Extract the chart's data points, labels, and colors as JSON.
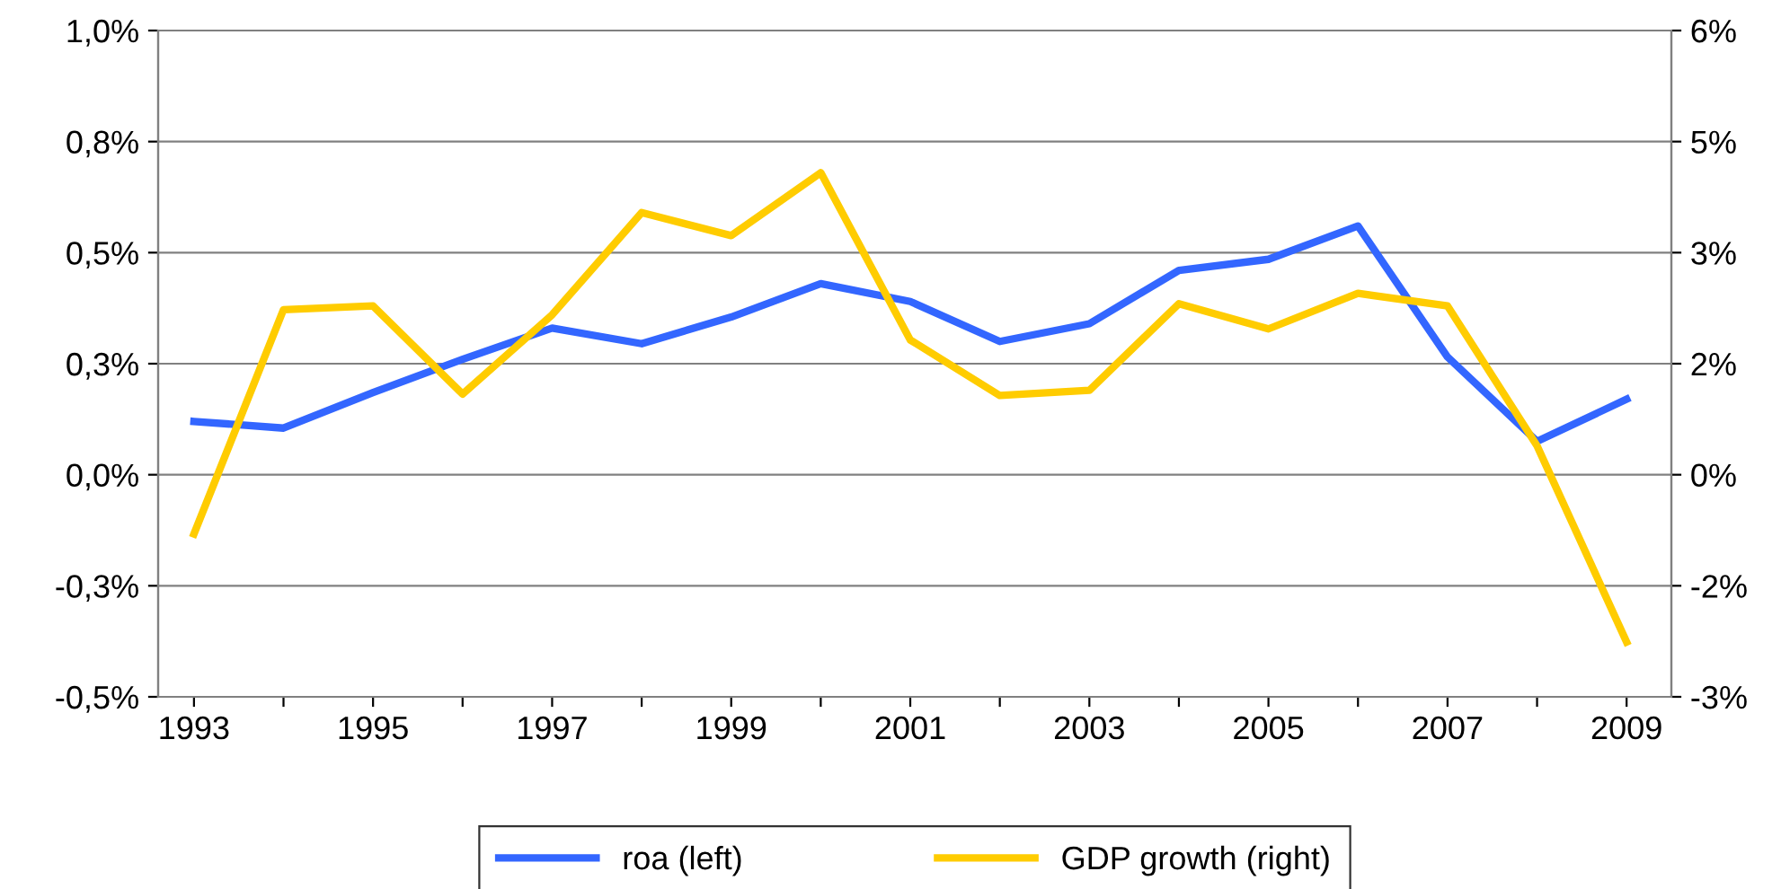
{
  "chart_data": {
    "type": "line",
    "x": [
      1993,
      1994,
      1995,
      1996,
      1997,
      1998,
      1999,
      2000,
      2001,
      2002,
      2003,
      2004,
      2005,
      2006,
      2007,
      2008,
      2009
    ],
    "series": [
      {
        "name": "roa (left)",
        "color": "#3366ff",
        "values": [
          0.12,
          0.105,
          0.185,
          0.26,
          0.33,
          0.295,
          0.355,
          0.43,
          0.39,
          0.3,
          0.34,
          0.46,
          0.485,
          0.56,
          0.265,
          0.075,
          0.17
        ]
      },
      {
        "name": "GDP growth (right)",
        "color": "#ffcc00",
        "axis": "y2",
        "values": [
          -0.8,
          2.23,
          2.28,
          1.09,
          2.16,
          3.54,
          3.23,
          4.08,
          1.82,
          1.07,
          1.14,
          2.31,
          1.97,
          2.45,
          2.28,
          0.39,
          -2.26
        ]
      }
    ],
    "xlim": [
      1992.6,
      2009.5
    ],
    "xticks": [
      1993,
      {
        "value": 1994,
        "label": null
      },
      1995,
      {
        "value": 1996,
        "label": null
      },
      1997,
      {
        "value": 1998,
        "label": null
      },
      1999,
      {
        "value": 2000,
        "label": null
      },
      2001,
      {
        "value": 2002,
        "label": null
      },
      2003,
      {
        "value": 2004,
        "label": null
      },
      2005,
      {
        "value": 2006,
        "label": null
      },
      2007,
      {
        "value": 2008,
        "label": null
      },
      2009
    ],
    "ylim": [
      -0.5,
      1.0
    ],
    "yticks": [
      {
        "value": -0.5,
        "label": "-0,5%"
      },
      {
        "value": -0.25,
        "label": "-0,3%"
      },
      {
        "value": 0,
        "label": "0,0%"
      },
      {
        "value": 0.25,
        "label": "0,3%"
      },
      {
        "value": 0.5,
        "label": "0,5%"
      },
      {
        "value": 0.75,
        "label": "0,8%"
      },
      {
        "value": 1.0,
        "label": "1,0%"
      }
    ],
    "y2lim": [
      -3,
      6
    ],
    "y2ticks": [
      {
        "value": -3,
        "label": "-3%"
      },
      {
        "value": -1.5,
        "label": "-2%"
      },
      {
        "value": 0,
        "label": "0%"
      },
      {
        "value": 1.5,
        "label": "2%"
      },
      {
        "value": 3,
        "label": "3%"
      },
      {
        "value": 4.5,
        "label": "5%"
      },
      {
        "value": 6,
        "label": "6%"
      }
    ],
    "grid": "y",
    "legend": "bottom",
    "marker": "none",
    "line_style": "solid"
  }
}
